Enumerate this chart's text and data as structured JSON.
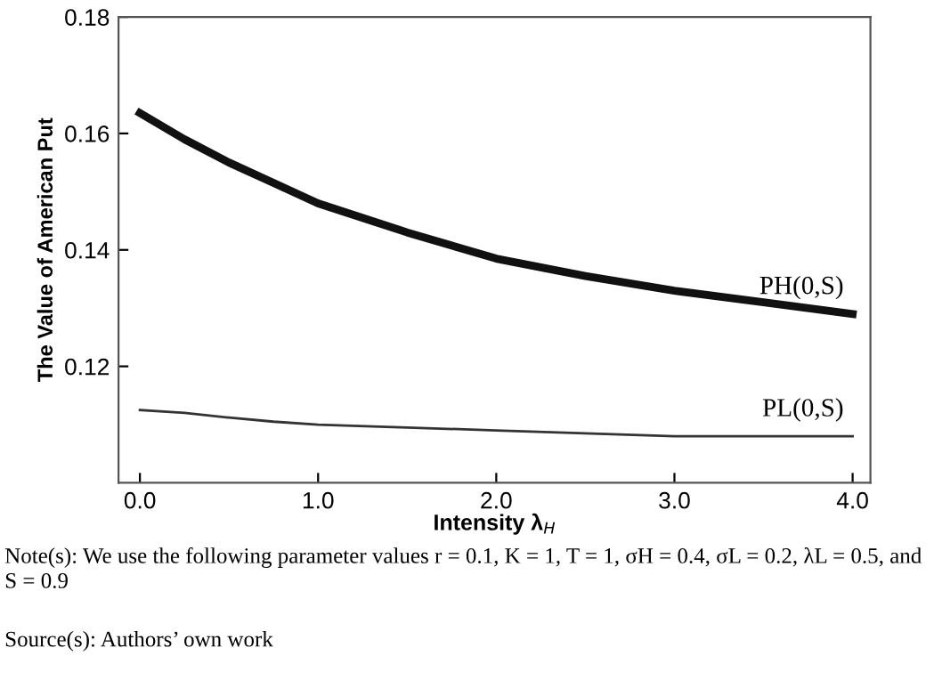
{
  "chart_data": {
    "type": "line",
    "xlabel": "Intensity λ$_{H}$",
    "ylabel": "The Value of American Put",
    "x": [
      0,
      0.25,
      0.5,
      0.75,
      1.0,
      1.5,
      2.0,
      2.5,
      3.0,
      3.5,
      4.0
    ],
    "series": [
      {
        "name": "PH(0,S)",
        "color": "#111111",
        "values": [
          0.1635,
          0.159,
          0.155,
          0.1515,
          0.148,
          0.143,
          0.1385,
          0.1355,
          0.133,
          0.131,
          0.129
        ]
      },
      {
        "name": "PL(0,S)",
        "color": "#333333",
        "values": [
          0.1125,
          0.112,
          0.1112,
          0.1105,
          0.11,
          0.1095,
          0.109,
          0.1085,
          0.108,
          0.108,
          0.108
        ]
      }
    ],
    "xlim": [
      -0.12,
      4.1
    ],
    "ylim": [
      0.1,
      0.18
    ],
    "xticks": [
      {
        "value": 0,
        "label": "0.0"
      },
      {
        "value": 1,
        "label": "1.0"
      },
      {
        "value": 2,
        "label": "2.0"
      },
      {
        "value": 3,
        "label": "3.0"
      },
      {
        "value": 4,
        "label": "4.0"
      }
    ],
    "yticks": [
      0.12,
      0.14,
      0.16,
      0.18
    ],
    "grid": false,
    "legend": false,
    "annotations": [
      "Note(s): We use the following parameter values r = 0.1, K = 1, T = 1, σH = 0.4, σL = 0.2, λL = 0.5, and S = 0.9",
      "Source(s): Authors’ own work"
    ]
  }
}
